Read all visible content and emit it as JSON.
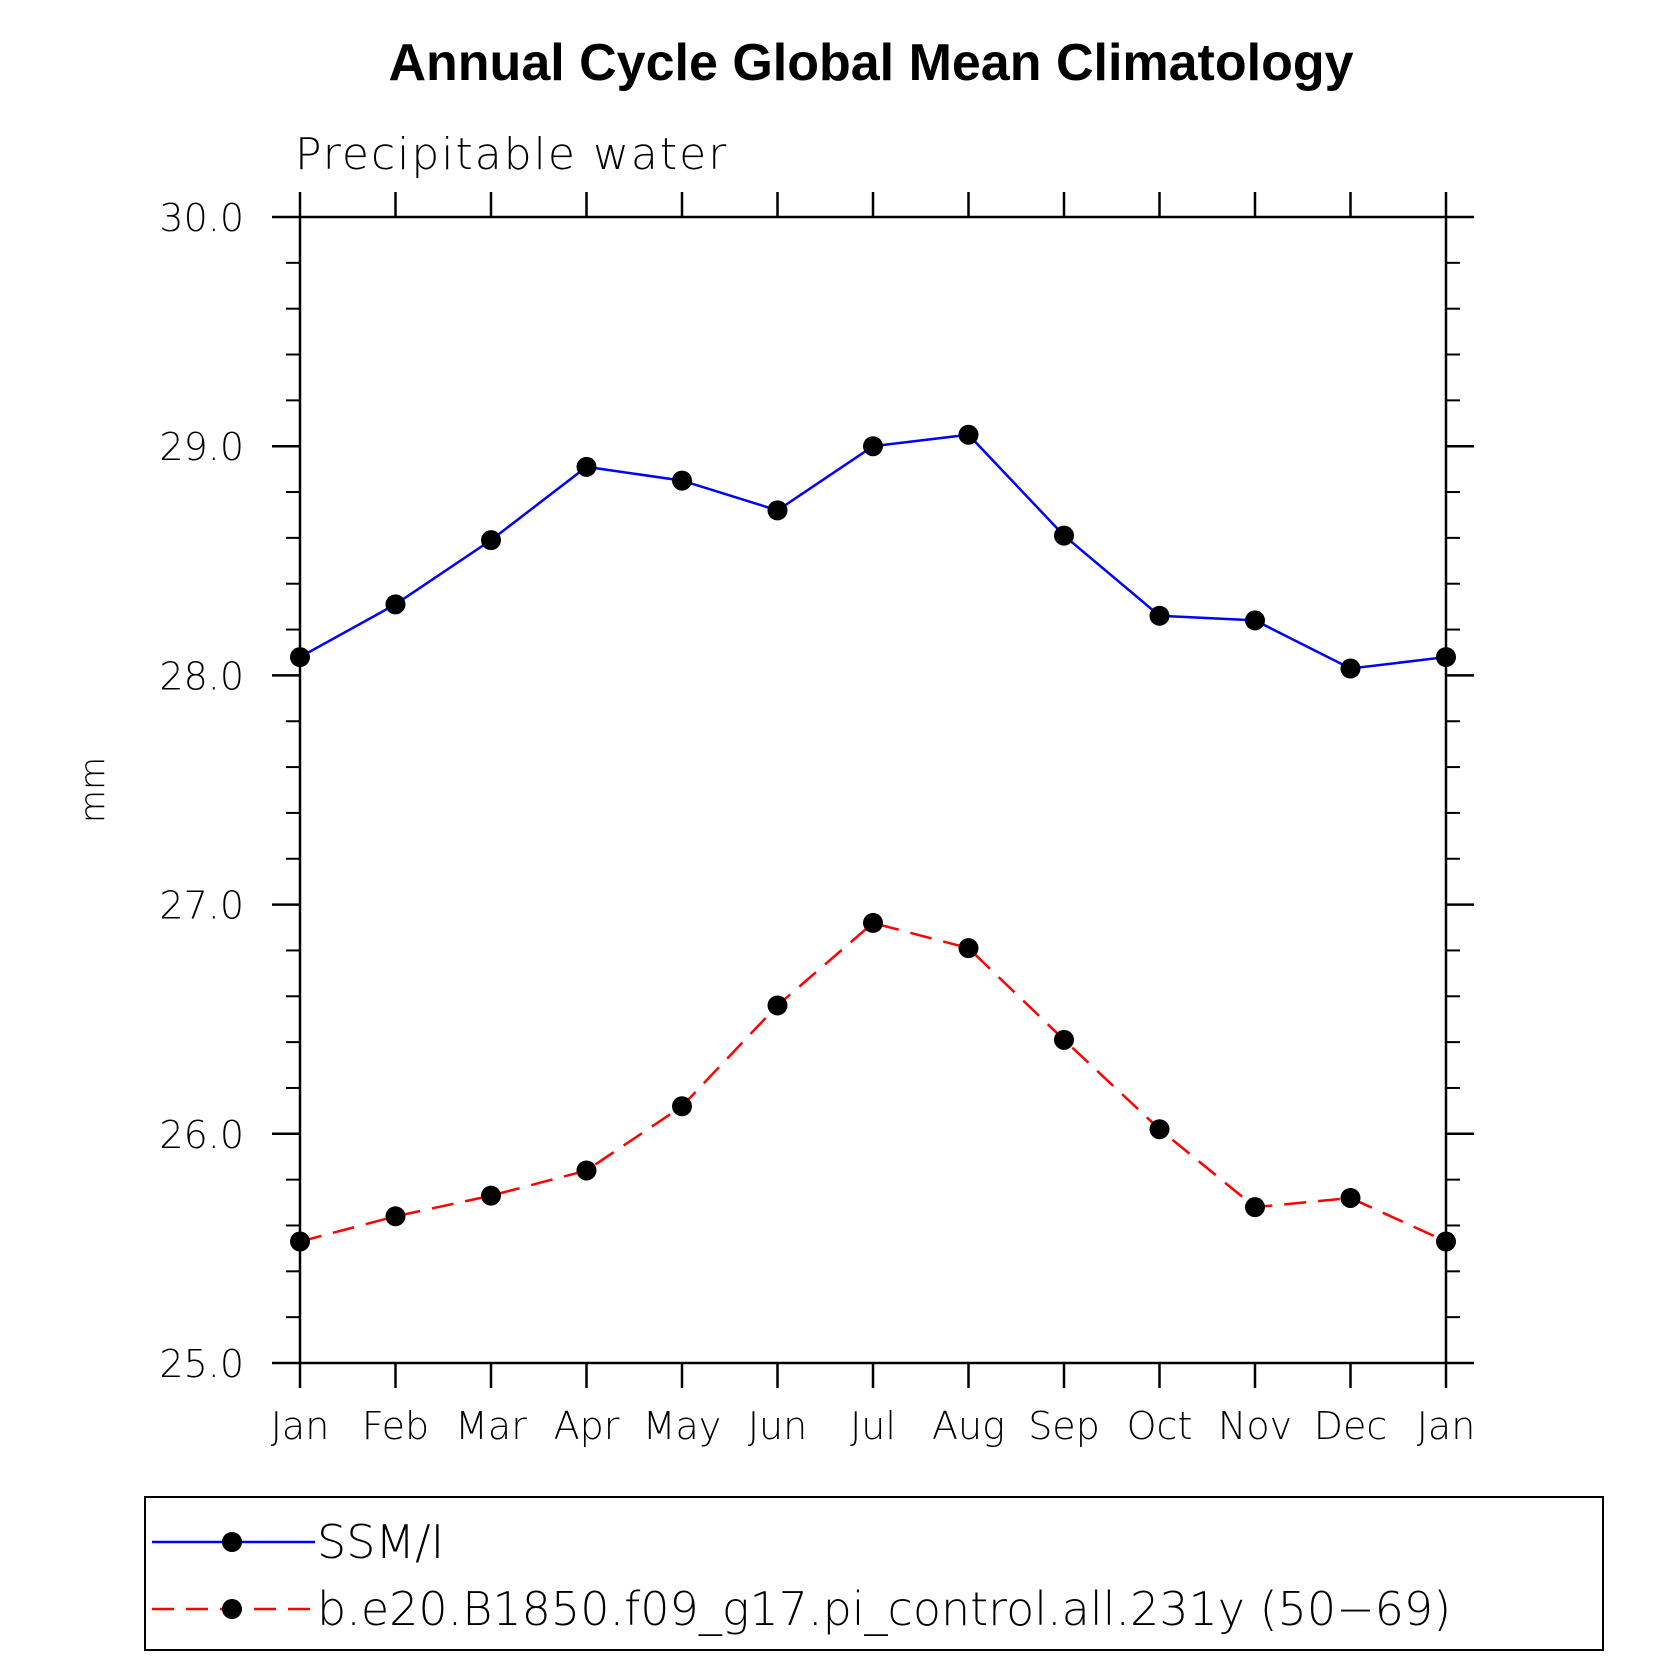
{
  "chart_data": {
    "type": "line",
    "title": "Annual Cycle Global Mean Climatology",
    "subtitle": "Precipitable water",
    "xlabel": "",
    "ylabel": "mm",
    "categories": [
      "Jan",
      "Feb",
      "Mar",
      "Apr",
      "May",
      "Jun",
      "Jul",
      "Aug",
      "Sep",
      "Oct",
      "Nov",
      "Dec",
      "Jan"
    ],
    "ylim": [
      25.0,
      30.0
    ],
    "yticks": [
      "25.0",
      "26.0",
      "27.0",
      "28.0",
      "29.0",
      "30.0"
    ],
    "grid": false,
    "legend_position": "bottom",
    "series": [
      {
        "name": "SSM/I",
        "color": "#0000ff",
        "line_style": "solid",
        "marker": "filled-circle",
        "values": [
          28.08,
          28.31,
          28.59,
          28.91,
          28.85,
          28.72,
          29.0,
          29.05,
          28.61,
          28.26,
          28.24,
          28.03,
          28.08
        ]
      },
      {
        "name": "b.e20.B1850.f09_g17.pi_control.all.231y (50−69)",
        "color": "#ff0000",
        "line_style": "dashed",
        "marker": "filled-circle",
        "values": [
          25.53,
          25.64,
          25.73,
          25.84,
          26.12,
          26.56,
          26.92,
          26.81,
          26.41,
          26.02,
          25.68,
          25.72,
          25.53
        ]
      }
    ]
  }
}
